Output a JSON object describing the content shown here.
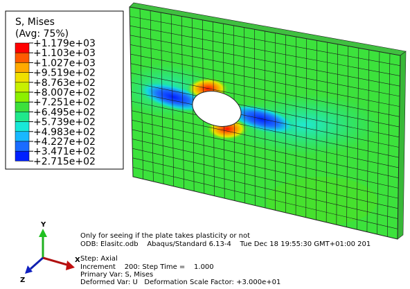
{
  "legend": {
    "title": "S, Mises",
    "subtitle": "(Avg: 75%)",
    "labels": [
      "+1.179e+03",
      "+1.103e+03",
      "+1.027e+03",
      "+9.519e+02",
      "+8.763e+02",
      "+8.007e+02",
      "+7.251e+02",
      "+6.495e+02",
      "+5.739e+02",
      "+4.983e+02",
      "+4.227e+02",
      "+3.471e+02",
      "+2.715e+02"
    ]
  },
  "triad": {
    "y": "Y",
    "x": "X",
    "z": "Z"
  },
  "info": [
    "Only for seeing if the plate takes plasticity or not",
    "ODB: Elasitc.odb    Abaqus/Standard 6.13-4    Tue Dec 18 19:55:30 GMT+01:00 201",
    "Step: Axial",
    "Increment    200: Step Time =    1.000",
    "Primary Var: S, Mises",
    "Deformed Var: U   Deformation Scale Factor: +3.000e+01"
  ]
}
